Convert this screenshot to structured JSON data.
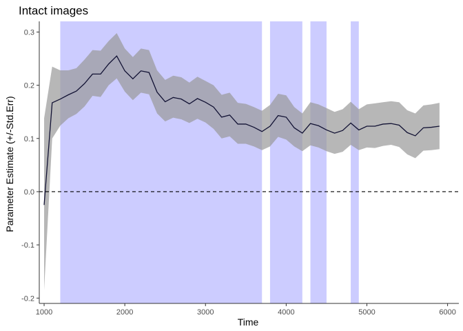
{
  "chart_data": {
    "type": "line",
    "title": "Intact images",
    "xlabel": "Time",
    "ylabel": "Parameter Estimate (+/-Std.Err)",
    "xlim": [
      940,
      6140
    ],
    "ylim": [
      -0.21,
      0.32
    ],
    "xticks": [
      1000,
      2000,
      3000,
      4000,
      5000,
      6000
    ],
    "yticks": [
      -0.2,
      -0.1,
      0.0,
      0.1,
      0.2,
      0.3
    ],
    "xtick_labels": [
      "1000",
      "2000",
      "3000",
      "4000",
      "5000",
      "6000"
    ],
    "ytick_labels": [
      "-0.2",
      "-0.1",
      "0.0",
      "0.1",
      "0.2",
      "0.3"
    ],
    "grid": false,
    "legend": "none",
    "reference_line": {
      "y": 0,
      "style": "dashed"
    },
    "significant_windows": [
      [
        1200,
        3700
      ],
      [
        3800,
        4200
      ],
      [
        4300,
        4500
      ],
      [
        4800,
        4900
      ]
    ],
    "x": [
      1000,
      1100,
      1200,
      1300,
      1400,
      1500,
      1600,
      1700,
      1800,
      1900,
      2000,
      2100,
      2200,
      2300,
      2400,
      2500,
      2600,
      2700,
      2800,
      2900,
      3000,
      3100,
      3200,
      3300,
      3400,
      3500,
      3600,
      3700,
      3800,
      3900,
      4000,
      4100,
      4200,
      4300,
      4400,
      4500,
      4600,
      4700,
      4800,
      4900,
      5000,
      5100,
      5200,
      5300,
      5400,
      5500,
      5600,
      5700,
      5800,
      5900
    ],
    "series": [
      {
        "estimate": [
          -0.025,
          0.167,
          0.174,
          0.182,
          0.189,
          0.203,
          0.221,
          0.221,
          0.24,
          0.255,
          0.227,
          0.212,
          0.227,
          0.224,
          0.187,
          0.169,
          0.177,
          0.174,
          0.165,
          0.175,
          0.168,
          0.159,
          0.14,
          0.144,
          0.127,
          0.127,
          0.121,
          0.113,
          0.123,
          0.143,
          0.14,
          0.12,
          0.11,
          0.128,
          0.124,
          0.116,
          0.11,
          0.115,
          0.129,
          0.116,
          0.123,
          0.123,
          0.127,
          0.128,
          0.125,
          0.111,
          0.105,
          0.12,
          0.121,
          0.123
        ],
        "lower": [
          -0.185,
          0.1,
          0.124,
          0.138,
          0.146,
          0.16,
          0.18,
          0.178,
          0.2,
          0.213,
          0.188,
          0.172,
          0.186,
          0.183,
          0.147,
          0.132,
          0.139,
          0.136,
          0.129,
          0.137,
          0.13,
          0.118,
          0.1,
          0.104,
          0.09,
          0.09,
          0.085,
          0.078,
          0.085,
          0.103,
          0.098,
          0.085,
          0.076,
          0.087,
          0.083,
          0.076,
          0.071,
          0.075,
          0.088,
          0.078,
          0.083,
          0.082,
          0.086,
          0.088,
          0.084,
          0.07,
          0.063,
          0.077,
          0.078,
          0.08
        ],
        "upper": [
          0.138,
          0.235,
          0.228,
          0.228,
          0.232,
          0.248,
          0.266,
          0.265,
          0.283,
          0.298,
          0.269,
          0.253,
          0.269,
          0.266,
          0.228,
          0.21,
          0.218,
          0.215,
          0.205,
          0.216,
          0.208,
          0.2,
          0.182,
          0.186,
          0.167,
          0.165,
          0.159,
          0.152,
          0.163,
          0.184,
          0.181,
          0.159,
          0.147,
          0.168,
          0.164,
          0.157,
          0.15,
          0.155,
          0.169,
          0.155,
          0.164,
          0.166,
          0.168,
          0.17,
          0.168,
          0.153,
          0.147,
          0.162,
          0.164,
          0.167
        ]
      }
    ],
    "colors": {
      "window": "#ccccff",
      "ribbon": "#999999",
      "ribbon_opacity": 0.7,
      "line": "#111133",
      "axis": "#333333",
      "tick_text": "#4d4d4d"
    }
  }
}
